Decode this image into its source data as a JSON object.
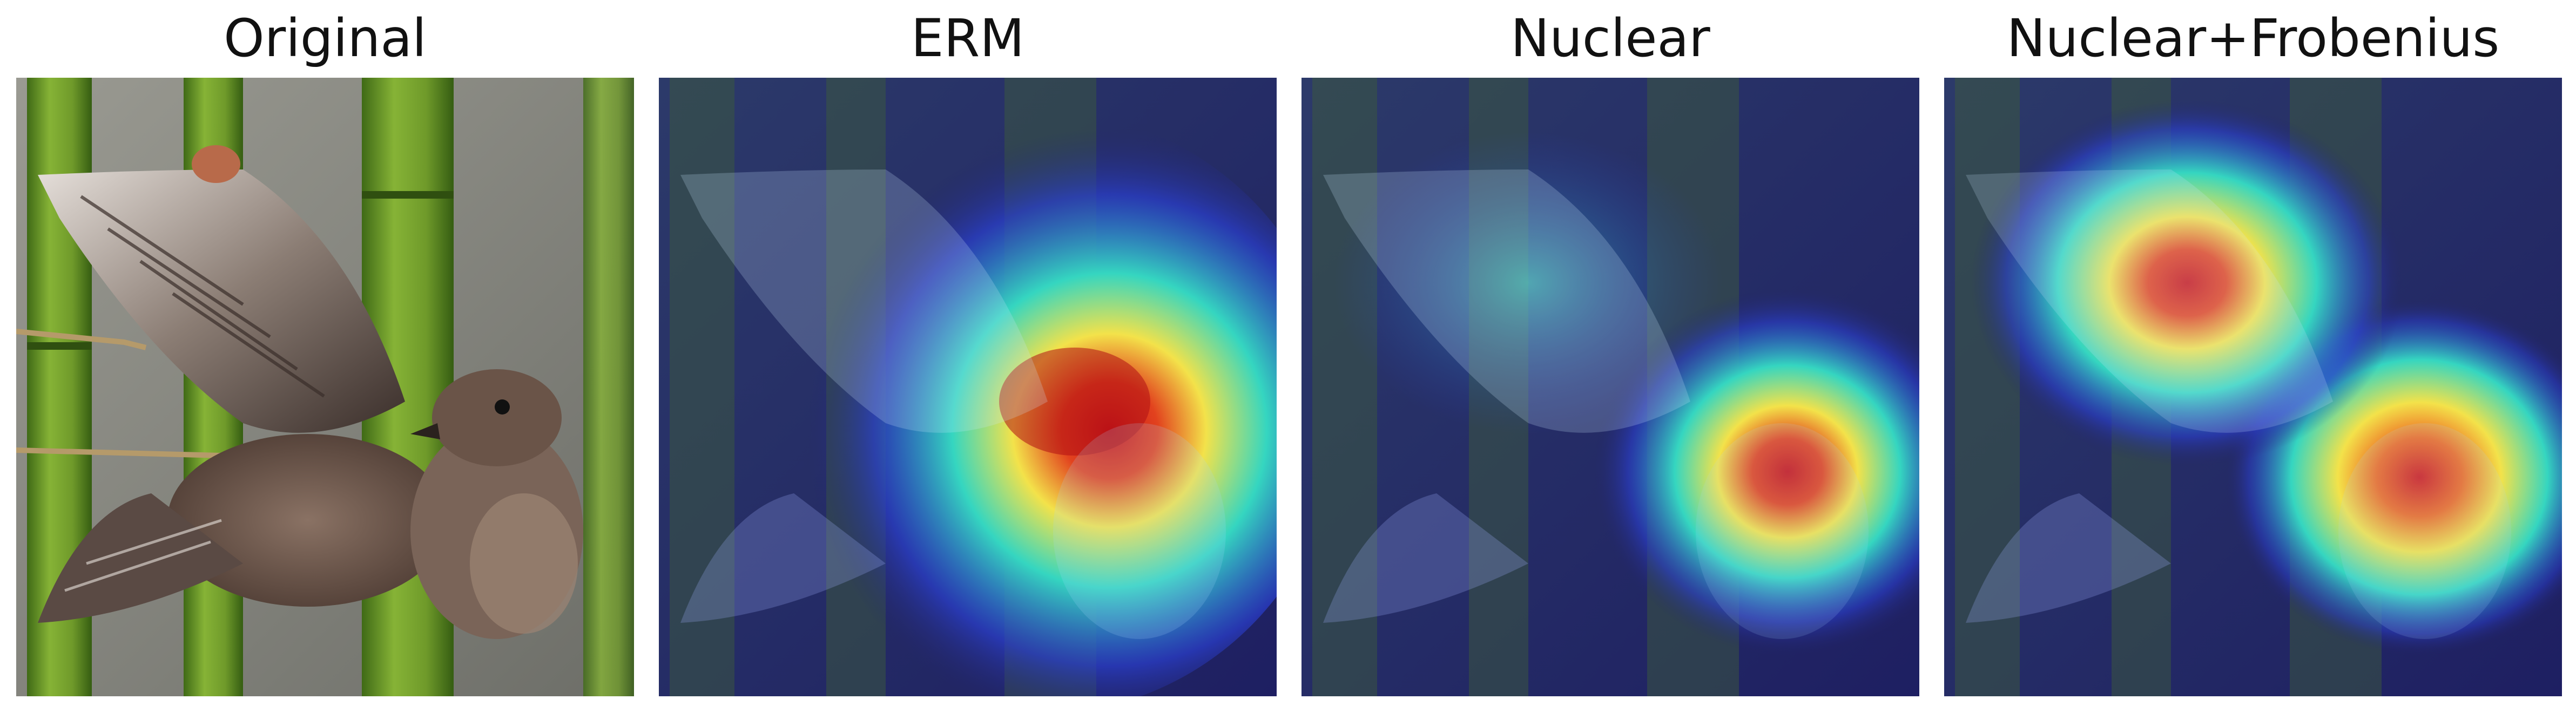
{
  "figure": {
    "panels": [
      {
        "title": "Original",
        "kind": "photo"
      },
      {
        "title": "ERM",
        "kind": "heatmap-overlay",
        "peak": "center-wing-body"
      },
      {
        "title": "Nuclear",
        "kind": "heatmap-overlay",
        "peak": "head"
      },
      {
        "title": "Nuclear+Frobenius",
        "kind": "heatmap-overlay",
        "peak": "upper-wing-and-head"
      }
    ],
    "subject": "bird-with-spread-wings-on-bamboo",
    "colors": {
      "bamboo": "#6f9a2a",
      "bamboo_dark": "#3f6a16",
      "background": "#8a8a82",
      "bird": "#6a5448",
      "wing_light": "#d9d2cc",
      "overlay_base": "#23246e",
      "heat_low": "#2a3fd0",
      "heat_mid": "#35d6c0",
      "heat_high_yellow": "#f3e24a",
      "heat_peak": "#c8141a"
    }
  }
}
